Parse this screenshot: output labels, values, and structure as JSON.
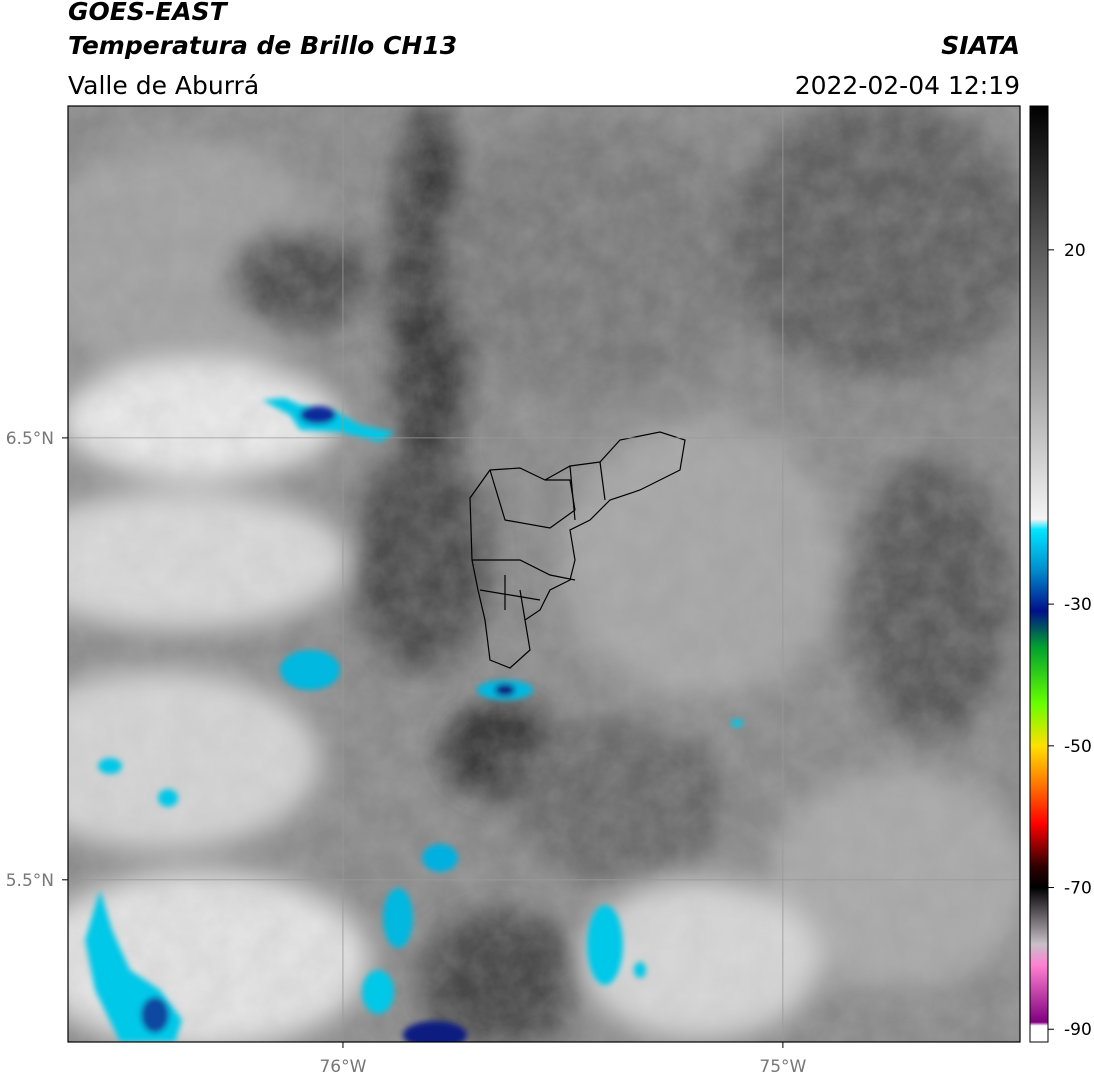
{
  "header": {
    "title": "GOES-EAST",
    "subtitle": "Temperatura de Brillo CH13",
    "region": "Valle de Aburrá",
    "source": "SIATA",
    "datetime": "2022-02-04 12:19"
  },
  "map": {
    "lonlim": [
      -76.625,
      -74.461
    ],
    "latlim": [
      5.133,
      7.251
    ],
    "lat_ticks": [
      {
        "value": 6.5,
        "label": "6.5°N"
      },
      {
        "value": 5.5,
        "label": "5.5°N"
      }
    ],
    "lon_ticks": [
      {
        "value": -76,
        "label": "76°W"
      },
      {
        "value": -75,
        "label": "75°W"
      }
    ],
    "grid": true
  },
  "colorbar": {
    "lim": [
      40.3,
      -91.8
    ],
    "ticks": [
      20,
      -30,
      -50,
      -70,
      -90
    ],
    "colormap": [
      {
        "value": 40.3,
        "color": "#000000"
      },
      {
        "value": 20,
        "color": "#5a5a5a"
      },
      {
        "value": 0,
        "color": "#a8a8a8"
      },
      {
        "value": -18,
        "color": "#f4f4f4"
      },
      {
        "value": -19.5,
        "color": "#00e5ff"
      },
      {
        "value": -25,
        "color": "#0090d0"
      },
      {
        "value": -31,
        "color": "#00108a"
      },
      {
        "value": -36,
        "color": "#00a030"
      },
      {
        "value": -44,
        "color": "#66ff00"
      },
      {
        "value": -50,
        "color": "#ffe000"
      },
      {
        "value": -55,
        "color": "#ff8000"
      },
      {
        "value": -61,
        "color": "#ff0000"
      },
      {
        "value": -67,
        "color": "#300000"
      },
      {
        "value": -70,
        "color": "#000000"
      },
      {
        "value": -78,
        "color": "#c8c0c8"
      },
      {
        "value": -81,
        "color": "#ff80d0"
      },
      {
        "value": -89,
        "color": "#800080"
      },
      {
        "value": -89.5,
        "color": "#ffffff"
      },
      {
        "value": -91.8,
        "color": "#ffffff"
      }
    ]
  }
}
